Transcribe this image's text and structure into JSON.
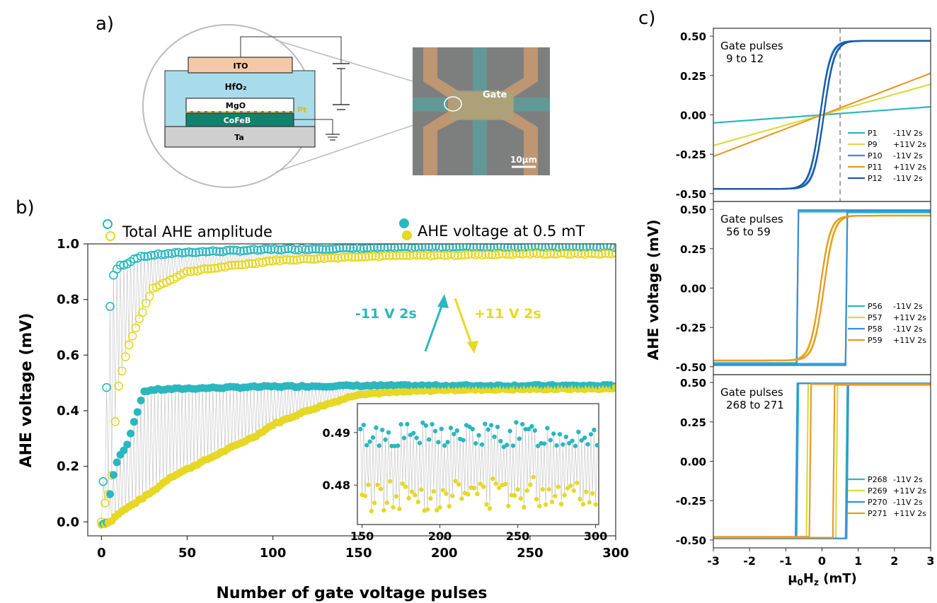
{
  "panels": {
    "a": "a)",
    "b": "b)",
    "c": "c)"
  },
  "schematic": {
    "layers": [
      "ITO",
      "HfO₂",
      "MgO",
      "Pt",
      "CoFeB",
      "Ta"
    ],
    "gate_label": "Gate",
    "scale_bar": "10µm"
  },
  "colors": {
    "teal": "#2ab7c0",
    "yellow": "#e6d824",
    "blue": "#3a8fd6",
    "orange": "#e89a28",
    "darkblue": "#1a5aa8",
    "lightyellow": "#d8dc40"
  },
  "chart_data": [
    {
      "type": "scatter",
      "panel": "b",
      "xlabel": "Number of gate voltage pulses",
      "ylabel": "AHE  voltage (mV)",
      "xlim": [
        -8,
        300
      ],
      "ylim": [
        -0.05,
        1.0
      ],
      "xticks": [
        0,
        50,
        100,
        150,
        200,
        250,
        300
      ],
      "yticks": [
        0.0,
        0.2,
        0.4,
        0.6,
        0.8,
        1.0
      ],
      "legend": [
        {
          "name": "Total AHE amplitude",
          "marker": "open"
        },
        {
          "name": "AHE voltage at 0.5 mT",
          "marker": "filled"
        }
      ],
      "annotations": [
        {
          "text": "-11 V 2s",
          "color": "teal"
        },
        {
          "text": "+11 V 2s",
          "color": "yellow"
        }
      ],
      "series": [
        {
          "name": "Total AHE amplitude (-11 V 2s)",
          "marker": "open",
          "color": "teal",
          "x": [
            0,
            2,
            4,
            6,
            8,
            10,
            15,
            20,
            30,
            50,
            100,
            150,
            200,
            250,
            300
          ],
          "y": [
            0.0,
            0.29,
            0.68,
            0.87,
            0.9,
            0.92,
            0.93,
            0.95,
            0.96,
            0.97,
            0.98,
            0.985,
            0.99,
            0.99,
            0.99
          ]
        },
        {
          "name": "Total AHE amplitude (+11 V 2s)",
          "marker": "open",
          "color": "yellow",
          "x": [
            0,
            2,
            4,
            6,
            8,
            10,
            15,
            20,
            30,
            50,
            100,
            150,
            200,
            250,
            300
          ],
          "y": [
            0.0,
            0.07,
            0.1,
            0.17,
            0.36,
            0.49,
            0.62,
            0.7,
            0.84,
            0.9,
            0.94,
            0.955,
            0.96,
            0.965,
            0.965
          ]
        },
        {
          "name": "AHE voltage at 0.5 mT (-11 V 2s)",
          "marker": "filled",
          "color": "teal",
          "x": [
            0,
            3,
            5,
            8,
            10,
            15,
            20,
            25,
            30,
            50,
            100,
            150,
            200,
            250,
            300
          ],
          "y": [
            -0.01,
            0.0,
            0.1,
            0.2,
            0.23,
            0.28,
            0.38,
            0.47,
            0.475,
            0.48,
            0.487,
            0.49,
            0.49,
            0.49,
            0.49
          ]
        },
        {
          "name": "AHE voltage at 0.5 mT (+11 V 2s)",
          "marker": "filled",
          "color": "yellow",
          "x": [
            0,
            5,
            10,
            20,
            30,
            40,
            50,
            60,
            70,
            80,
            90,
            100,
            120,
            140,
            150,
            200,
            250,
            300
          ],
          "y": [
            -0.01,
            0.0,
            0.03,
            0.07,
            0.11,
            0.16,
            0.19,
            0.22,
            0.25,
            0.28,
            0.31,
            0.35,
            0.4,
            0.44,
            0.46,
            0.475,
            0.478,
            0.48
          ]
        }
      ]
    },
    {
      "type": "scatter",
      "panel": "b-inset",
      "xlim": [
        147,
        302
      ],
      "ylim": [
        0.4725,
        0.4955
      ],
      "xticks": [
        150,
        200,
        250,
        300
      ],
      "yticks": [
        0.48,
        0.49
      ],
      "series": [
        {
          "name": "-11 V 2s",
          "color": "teal",
          "y_level": 0.4895,
          "y_spread": 0.0025
        },
        {
          "name": "+11 V 2s",
          "color": "yellow",
          "y_level": 0.4785,
          "y_spread": 0.003
        }
      ]
    },
    {
      "type": "line",
      "panel": "c",
      "ylabel": "AHE  voltage (mV)",
      "xlabel": "μ₀H₂ (mT)",
      "xlabel_parts": [
        "μ",
        "0",
        "H",
        "z",
        " (mT)"
      ],
      "xlim": [
        -3,
        3
      ],
      "ylim": [
        -0.55,
        0.55
      ],
      "xticks": [
        -3,
        -2,
        -1,
        0,
        1,
        2,
        3
      ],
      "yticks": [
        -0.5,
        -0.25,
        0.0,
        0.25,
        0.5
      ],
      "subplots": [
        {
          "title": [
            "Gate pulses",
            "9 to 12"
          ],
          "marker_line_x": 0.5,
          "series": [
            {
              "name": "P1",
              "label": "-11V 2s",
              "color": "teal",
              "kind": "linear",
              "slope": 0.017
            },
            {
              "name": "P9",
              "label": "+11V 2s",
              "color": "lightyellow",
              "kind": "linear",
              "slope": 0.065
            },
            {
              "name": "P10",
              "label": "-11V 2s",
              "color": "blue",
              "kind": "tanh",
              "amp": 0.47,
              "width": 0.33
            },
            {
              "name": "P11",
              "label": "+11V 2s",
              "color": "orange",
              "kind": "linear",
              "slope": 0.088
            },
            {
              "name": "P12",
              "label": "-11V 2s",
              "color": "darkblue",
              "kind": "tanh",
              "amp": 0.47,
              "width": 0.35
            }
          ]
        },
        {
          "title": [
            "Gate pulses",
            "56 to 59"
          ],
          "series": [
            {
              "name": "P56",
              "label": "-11V 2s",
              "color": "teal",
              "kind": "loop",
              "amp": 0.48,
              "hc": 0.65
            },
            {
              "name": "P57",
              "label": "+11V 2s",
              "color": "lightyellow",
              "kind": "tanh",
              "amp": 0.46,
              "width": 0.35
            },
            {
              "name": "P58",
              "label": "-11V 2s",
              "color": "blue",
              "kind": "loop",
              "amp": 0.49,
              "hc": 0.65
            },
            {
              "name": "P59",
              "label": "+11V 2s",
              "color": "orange",
              "kind": "tanh",
              "amp": 0.46,
              "width": 0.33
            }
          ]
        },
        {
          "title": [
            "Gate pulses",
            "268 to 271"
          ],
          "series": [
            {
              "name": "P268",
              "label": "-11V 2s",
              "color": "teal",
              "kind": "loop",
              "amp": 0.49,
              "hc": 0.65
            },
            {
              "name": "P269",
              "label": "+11V 2s",
              "color": "lightyellow",
              "kind": "loop",
              "amp": 0.49,
              "hc": 0.38
            },
            {
              "name": "P270",
              "label": "-11V 2s",
              "color": "blue",
              "kind": "loop",
              "amp": 0.49,
              "hc": 0.68
            },
            {
              "name": "P271",
              "label": "+11V 2s",
              "color": "orange",
              "kind": "loop",
              "amp": 0.485,
              "hc": 0.3
            }
          ]
        }
      ]
    }
  ]
}
